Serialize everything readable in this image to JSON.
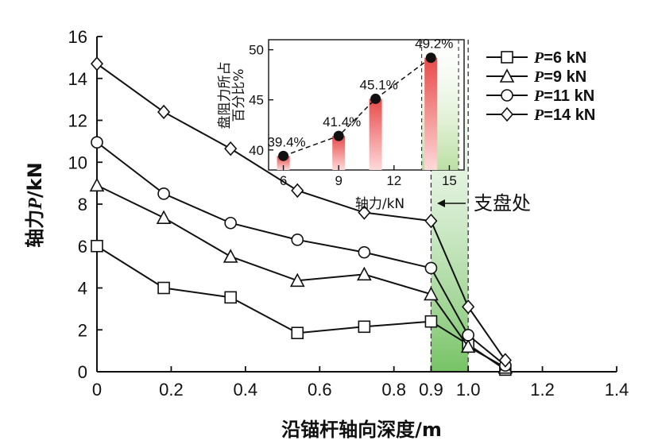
{
  "chart_data": {
    "type": "line",
    "xlabel": "沿锚杆轴向深度/m",
    "ylabel_main": "轴力",
    "ylabel_var": "P",
    "ylabel_unit": "/kN",
    "xlim": [
      0,
      1.4
    ],
    "ylim": [
      0,
      16
    ],
    "xticks": [
      0,
      0.2,
      0.4,
      0.6,
      0.8,
      0.9,
      1.0,
      1.2,
      1.4
    ],
    "xtick_labels": [
      "0",
      "0.2",
      "0.4",
      "0.6",
      "0.8",
      "0.9",
      "1.0",
      "1.2",
      "1.4"
    ],
    "yticks": [
      0,
      2,
      4,
      6,
      8,
      10,
      12,
      14,
      16
    ],
    "ytick_labels": [
      "0",
      "2",
      "4",
      "6",
      "8",
      "10",
      "12",
      "14",
      "16"
    ],
    "grid": false,
    "legend_position": "top-right",
    "x": [
      0,
      0.18,
      0.36,
      0.54,
      0.72,
      0.9,
      1.0,
      1.1
    ],
    "series": [
      {
        "name_var": "P",
        "name_rest": "=6 kN",
        "marker": "square",
        "values": [
          6.0,
          4.0,
          3.55,
          1.85,
          2.15,
          2.4,
          1.3,
          0.1
        ]
      },
      {
        "name_var": "P",
        "name_rest": "=9 kN",
        "marker": "triangle",
        "values": [
          8.9,
          7.35,
          5.5,
          4.35,
          4.65,
          3.7,
          1.2,
          0.2
        ]
      },
      {
        "name_var": "P",
        "name_rest": "=11 kN",
        "marker": "circle",
        "values": [
          10.95,
          8.5,
          7.1,
          6.3,
          5.7,
          4.95,
          1.75,
          0.3
        ]
      },
      {
        "name_var": "P",
        "name_rest": "=14 kN",
        "marker": "diamond",
        "values": [
          14.7,
          12.4,
          10.65,
          8.65,
          7.6,
          7.2,
          3.1,
          0.55
        ]
      }
    ],
    "shaded_region": {
      "x": [
        0.9,
        1.0
      ],
      "color": "#7cc26a"
    },
    "annotation": {
      "text": "支盘处",
      "target_x": 1.0
    },
    "inset": {
      "type": "bar",
      "ytitle_line1": "盘阻力所占",
      "ytitle_line2": "百分比%",
      "xlabel": "轴力/kN",
      "xlim": [
        5.2,
        15.8
      ],
      "ylim": [
        38,
        51
      ],
      "xticks": [
        6,
        9,
        12,
        15
      ],
      "xtick_labels": [
        "6",
        "9",
        "12",
        "15"
      ],
      "yticks": [
        40,
        45,
        50
      ],
      "ytick_labels": [
        "40",
        "45",
        "50"
      ],
      "x": [
        6,
        9,
        11,
        14
      ],
      "values": [
        39.4,
        41.4,
        45.1,
        49.2
      ],
      "labels": [
        "39.4%",
        "41.4%",
        "45.1%",
        "49.2%"
      ],
      "bar_color": "#e84a4a",
      "line_style": "dashed",
      "highlight_region": {
        "x": [
          13.5,
          15.5
        ],
        "color": "#b8dd9e"
      }
    }
  }
}
